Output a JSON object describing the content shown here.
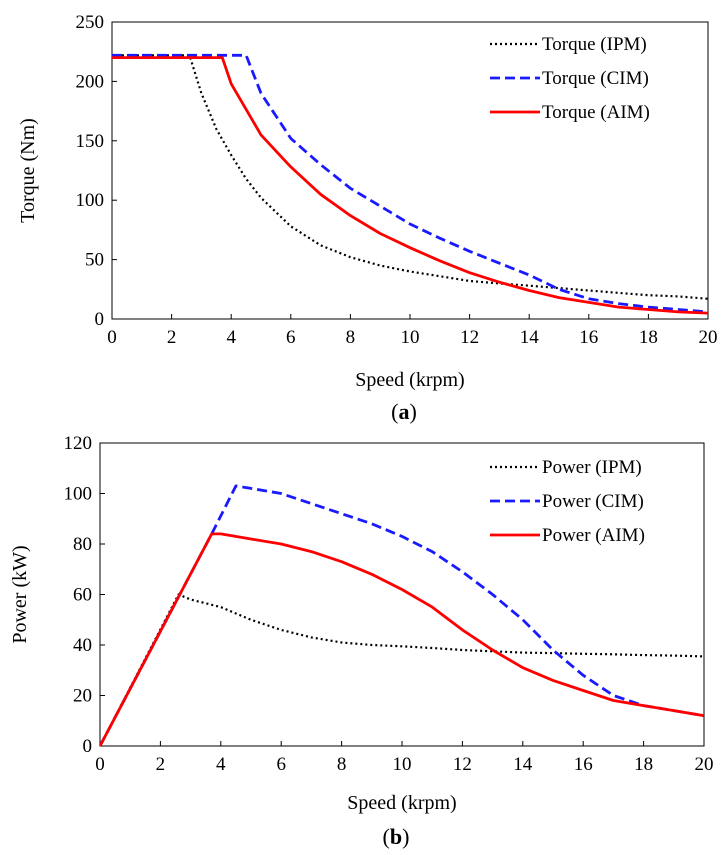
{
  "chart_data": [
    {
      "type": "line",
      "xlabel": "Speed (krpm)",
      "ylabel": "Torque (Nm)",
      "xlim": [
        0,
        20
      ],
      "ylim": [
        0,
        250
      ],
      "xticks": [
        "0",
        "2",
        "4",
        "6",
        "8",
        "10",
        "12",
        "14",
        "16",
        "18",
        "20"
      ],
      "yticks": [
        "0",
        "50",
        "100",
        "150",
        "200",
        "250"
      ],
      "grid": false,
      "legend_position": "top-right",
      "caption": {
        "open": "(",
        "letter": "a",
        "close": ")"
      },
      "series": [
        {
          "name": "Torque (IPM)",
          "color": "#000000",
          "style": "dotted",
          "x": [
            0,
            2.6,
            3,
            3.5,
            4,
            4.5,
            5,
            6,
            7,
            8,
            9,
            10,
            11,
            12,
            13,
            14,
            15,
            16,
            17,
            18,
            19,
            20
          ],
          "y": [
            222,
            222,
            190,
            160,
            138,
            118,
            102,
            78,
            62,
            52,
            45,
            40,
            36,
            32,
            30,
            28,
            26,
            24,
            22,
            20,
            19,
            17
          ]
        },
        {
          "name": "Torque (CIM)",
          "color": "#1a1aff",
          "style": "dashed",
          "x": [
            0,
            4.5,
            5,
            6,
            7,
            8,
            9,
            10,
            11,
            12,
            13,
            14,
            15,
            16,
            17,
            18,
            19,
            20
          ],
          "y": [
            222,
            222,
            190,
            152,
            130,
            110,
            95,
            80,
            68,
            57,
            47,
            37,
            25,
            17,
            13,
            10,
            8,
            6
          ]
        },
        {
          "name": "Torque (AIM)",
          "color": "#ff0000",
          "style": "solid",
          "x": [
            0,
            3.7,
            4,
            5,
            6,
            7,
            8,
            9,
            10,
            11,
            12,
            13,
            14,
            15,
            16,
            17,
            18,
            19,
            20
          ],
          "y": [
            220,
            220,
            198,
            155,
            128,
            105,
            87,
            72,
            60,
            49,
            39,
            31,
            24,
            18,
            14,
            10,
            8,
            6,
            5
          ]
        }
      ]
    },
    {
      "type": "line",
      "xlabel": "Speed (krpm)",
      "ylabel": "Power (kW)",
      "xlim": [
        0,
        20
      ],
      "ylim": [
        0,
        120
      ],
      "xticks": [
        "0",
        "2",
        "4",
        "6",
        "8",
        "10",
        "12",
        "14",
        "16",
        "18",
        "20"
      ],
      "yticks": [
        "0",
        "20",
        "40",
        "60",
        "80",
        "100",
        "120"
      ],
      "grid": false,
      "legend_position": "top-right",
      "caption": {
        "open": "(",
        "letter": "b",
        "close": ")"
      },
      "series": [
        {
          "name": "Power (IPM)",
          "color": "#000000",
          "style": "dotted",
          "x": [
            0,
            2.6,
            3,
            4,
            5,
            6,
            7,
            8,
            9,
            10,
            11,
            12,
            13,
            14,
            15,
            16,
            17,
            18,
            19,
            20
          ],
          "y": [
            0,
            60,
            58,
            55,
            50,
            46,
            43,
            41,
            40,
            39.5,
            38.8,
            38,
            37.5,
            37,
            36.8,
            36.5,
            36.3,
            36,
            35.8,
            35.5
          ]
        },
        {
          "name": "Power (CIM)",
          "color": "#1a1aff",
          "style": "dashed",
          "x": [
            0,
            3.7,
            4.5,
            5,
            6,
            7,
            8,
            9,
            10,
            11,
            12,
            13,
            14,
            15,
            16,
            17,
            18,
            19,
            20
          ],
          "y": [
            0,
            84,
            103,
            102,
            100,
            96,
            92,
            88,
            83,
            77,
            69,
            60,
            50,
            38,
            28,
            20,
            16,
            14,
            12
          ]
        },
        {
          "name": "Power (AIM)",
          "color": "#ff0000",
          "style": "solid",
          "x": [
            0,
            3.7,
            4,
            5,
            6,
            7,
            8,
            9,
            10,
            11,
            12,
            13,
            14,
            15,
            16,
            17,
            18,
            19,
            20
          ],
          "y": [
            0,
            84,
            84,
            82,
            80,
            77,
            73,
            68,
            62,
            55,
            46,
            38,
            31,
            26,
            22,
            18,
            16,
            14,
            12
          ]
        }
      ]
    }
  ]
}
